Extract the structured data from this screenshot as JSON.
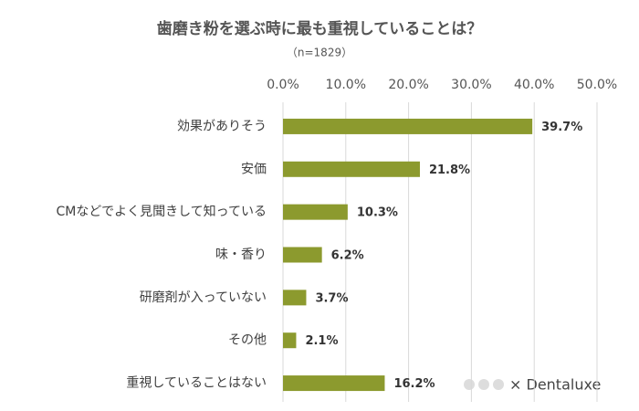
{
  "chart_data": {
    "type": "bar",
    "orientation": "horizontal",
    "title": "歯磨き粉を選ぶ時に最も重視していることは？",
    "subtitle": "（n=1829）",
    "categories": [
      "効果がありそう",
      "安価",
      "CMなどでよく見聞きして知っている",
      "味・香り",
      "研磨剤が入っていない",
      "その他",
      "重視していることはない"
    ],
    "values": [
      39.7,
      21.8,
      10.3,
      6.2,
      3.7,
      2.1,
      16.2
    ],
    "value_labels": [
      "39.7%",
      "21.8%",
      "10.3%",
      "6.2%",
      "3.7%",
      "2.1%",
      "16.2%"
    ],
    "color": "#8c9a2e",
    "xlim": [
      0,
      50
    ],
    "xticks": [
      {
        "value": 0,
        "label": "0.0%"
      },
      {
        "value": 10,
        "label": "10.0%"
      },
      {
        "value": 20,
        "label": "20.0%"
      },
      {
        "value": 30,
        "label": "30.0%"
      },
      {
        "value": 40,
        "label": "40.0%"
      },
      {
        "value": 50,
        "label": "50.0%"
      }
    ],
    "grid": true,
    "brand": "× Dentaluxe"
  }
}
